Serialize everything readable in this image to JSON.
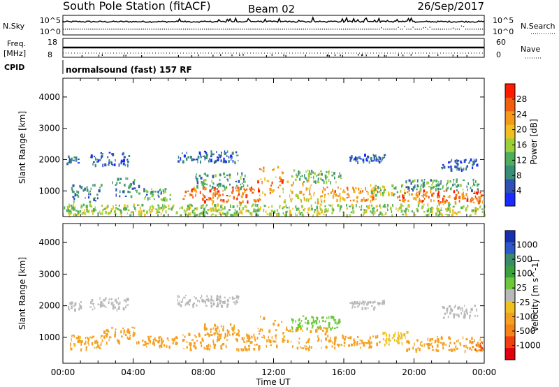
{
  "header": {
    "station": "South Pole Station (fitACF)",
    "beam": "Beam 02",
    "date": "26/Sep/2017"
  },
  "summary_panel": {
    "left_labels": {
      "nsky": "N.Sky",
      "freq": "Freq.",
      "freq_unit": "[MHz]",
      "cpid": "CPID"
    },
    "right_labels": {
      "nsearch": "N.Search",
      "nave": "Nave"
    },
    "noise_left_ticks": [
      "10^5",
      "10^0"
    ],
    "noise_right_ticks": [
      "10^5",
      "10^0"
    ],
    "freq_ticks": [
      "18",
      "8"
    ],
    "nave_ticks": [
      "60",
      "0"
    ],
    "cpid_text": "normalsound (fast) 157 RF"
  },
  "chart_data": [
    {
      "type": "heatmap",
      "name": "power-panel",
      "title": "",
      "xlabel": "Time UT",
      "ylabel": "Slant Range [km]",
      "xlim": [
        0,
        24
      ],
      "ylim": [
        180,
        4600
      ],
      "x_ticks": [
        "00:00",
        "04:00",
        "08:00",
        "12:00",
        "16:00",
        "20:00",
        "00:00"
      ],
      "y_ticks": [
        1000,
        2000,
        3000,
        4000
      ],
      "colorbar": {
        "label": "Power [dB]",
        "range": [
          0,
          32
        ],
        "ticks": [
          4,
          8,
          12,
          16,
          20,
          24,
          28
        ],
        "colors": [
          "#1a2bff",
          "#3050b8",
          "#3a8e78",
          "#4fae5a",
          "#9dcf3a",
          "#f0c020",
          "#f59a18",
          "#f06010",
          "#ff1a00"
        ]
      },
      "regions": [
        {
          "t": [
            0.2,
            0.9
          ],
          "r": [
            1900,
            2150
          ],
          "v": 6
        },
        {
          "t": [
            0.4,
            2.2
          ],
          "r": [
            680,
            1250
          ],
          "v": 9
        },
        {
          "t": [
            1.5,
            3.8
          ],
          "r": [
            1850,
            2250
          ],
          "v": 6
        },
        {
          "t": [
            2.8,
            4.3
          ],
          "r": [
            850,
            1450
          ],
          "v": 9
        },
        {
          "t": [
            4.5,
            6.3
          ],
          "r": [
            750,
            1100
          ],
          "v": 11
        },
        {
          "t": [
            6.5,
            10.0
          ],
          "r": [
            1950,
            2300
          ],
          "v": 6
        },
        {
          "t": [
            6.8,
            11.3
          ],
          "r": [
            650,
            1150
          ],
          "v": 26
        },
        {
          "t": [
            7.5,
            10.5
          ],
          "r": [
            1100,
            1600
          ],
          "v": 11
        },
        {
          "t": [
            11.0,
            12.5
          ],
          "r": [
            800,
            1800
          ],
          "v": 24
        },
        {
          "t": [
            12.5,
            14.8
          ],
          "r": [
            650,
            1350
          ],
          "v": 20
        },
        {
          "t": [
            13.0,
            15.8
          ],
          "r": [
            1300,
            1700
          ],
          "v": 13
        },
        {
          "t": [
            14.8,
            17.8
          ],
          "r": [
            700,
            1150
          ],
          "v": 24
        },
        {
          "t": [
            16.3,
            18.3
          ],
          "r": [
            1950,
            2200
          ],
          "v": 6
        },
        {
          "t": [
            17.5,
            19.5
          ],
          "r": [
            850,
            1250
          ],
          "v": 15
        },
        {
          "t": [
            19.0,
            23.9
          ],
          "r": [
            650,
            1050
          ],
          "v": 26
        },
        {
          "t": [
            19.5,
            23.7
          ],
          "r": [
            1050,
            1400
          ],
          "v": 11
        },
        {
          "t": [
            21.5,
            23.6
          ],
          "r": [
            1700,
            2050
          ],
          "v": 7
        },
        {
          "t": [
            0.0,
            24.0
          ],
          "r": [
            250,
            600
          ],
          "v": 16
        }
      ]
    },
    {
      "type": "heatmap",
      "name": "velocity-panel",
      "title": "",
      "xlabel": "Time UT",
      "ylabel": "Slant Range [km]",
      "xlim": [
        0,
        24
      ],
      "ylim": [
        180,
        4600
      ],
      "x_ticks": [
        "00:00",
        "04:00",
        "08:00",
        "12:00",
        "16:00",
        "20:00",
        "00:00"
      ],
      "y_ticks": [
        1000,
        2000,
        3000,
        4000
      ],
      "colorbar": {
        "label": "Velocity [m s^-1]",
        "levels": [
          -1000,
          -500,
          -100,
          -25,
          25,
          100,
          500,
          1000
        ],
        "tick_labels": [
          "1000",
          "500",
          "100",
          "25",
          "-25",
          "-100",
          "-500",
          "-1000"
        ],
        "colors_top_to_bottom": [
          "#1530b0",
          "#2e58c8",
          "#3b8a6a",
          "#3aa040",
          "#6cc83a",
          "#b8b8b8",
          "#f0c020",
          "#f5a020",
          "#f58418",
          "#f04010",
          "#e00010"
        ]
      },
      "regions": [
        {
          "t": [
            0.2,
            1.0
          ],
          "r": [
            1900,
            2150
          ],
          "v": 0
        },
        {
          "t": [
            0.4,
            2.2
          ],
          "r": [
            650,
            1100
          ],
          "v": -150
        },
        {
          "t": [
            1.5,
            3.8
          ],
          "r": [
            1900,
            2300
          ],
          "v": 0
        },
        {
          "t": [
            2.2,
            4.3
          ],
          "r": [
            850,
            1400
          ],
          "v": -200
        },
        {
          "t": [
            4.5,
            6.5
          ],
          "r": [
            700,
            1050
          ],
          "v": -200
        },
        {
          "t": [
            6.5,
            10.0
          ],
          "r": [
            2000,
            2350
          ],
          "v": 0
        },
        {
          "t": [
            6.8,
            11.3
          ],
          "r": [
            650,
            1150
          ],
          "v": -200
        },
        {
          "t": [
            8.0,
            10.0
          ],
          "r": [
            1100,
            1450
          ],
          "v": -150
        },
        {
          "t": [
            11.0,
            12.5
          ],
          "r": [
            750,
            1700
          ],
          "v": -180
        },
        {
          "t": [
            12.5,
            15.0
          ],
          "r": [
            650,
            1350
          ],
          "v": -150
        },
        {
          "t": [
            13.0,
            15.8
          ],
          "r": [
            1300,
            1700
          ],
          "v": 60
        },
        {
          "t": [
            15.0,
            18.0
          ],
          "r": [
            700,
            1100
          ],
          "v": -200
        },
        {
          "t": [
            16.3,
            18.3
          ],
          "r": [
            1950,
            2200
          ],
          "v": 0
        },
        {
          "t": [
            18.0,
            19.6
          ],
          "r": [
            800,
            1200
          ],
          "v": -60
        },
        {
          "t": [
            19.5,
            23.9
          ],
          "r": [
            600,
            1050
          ],
          "v": -250
        },
        {
          "t": [
            21.5,
            23.6
          ],
          "r": [
            1650,
            2050
          ],
          "v": 0
        },
        {
          "t": [
            23.3,
            23.9
          ],
          "r": [
            600,
            900
          ],
          "v": -600
        }
      ]
    }
  ]
}
